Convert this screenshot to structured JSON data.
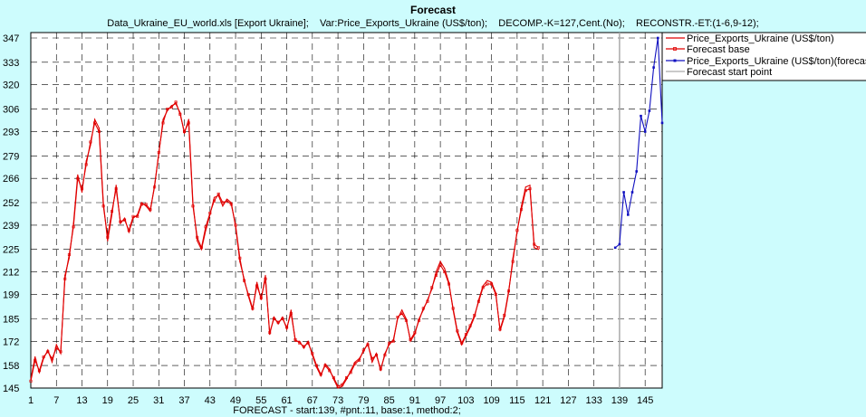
{
  "chart_data": {
    "type": "line",
    "title": "Forecast",
    "subtitle": "Data_Ukraine_EU_world.xls [Export Ukraine];    Var:Price_Exports_Ukraine (US$/ton);    DECOMP.-K=127,Cent.(No);    RECONSTR.-ET:(1-6,9-12);",
    "xlabel": "FORECAST - start:139, #pnt.:11, base:1, method:2;",
    "ylabel": "",
    "xlim": [
      1,
      149
    ],
    "ylim": [
      145,
      347
    ],
    "x_ticks": [
      "1",
      "7",
      "13",
      "19",
      "25",
      "31",
      "37",
      "43",
      "49",
      "55",
      "61",
      "67",
      "73",
      "79",
      "85",
      "91",
      "97",
      "103",
      "109",
      "115",
      "121",
      "127",
      "133",
      "139",
      "145"
    ],
    "y_ticks": [
      "145",
      "158",
      "172",
      "185",
      "199",
      "212",
      "225",
      "239",
      "252",
      "266",
      "279",
      "293",
      "306",
      "320",
      "333",
      "347"
    ],
    "grid": true,
    "legend_position": "right",
    "forecast_start": 139,
    "series": [
      {
        "name": "Price_Exports_Ukraine (US$/ton)",
        "color": "#e00000",
        "marker": "none",
        "x_start": 1,
        "values": [
          150,
          163,
          154,
          162,
          167,
          160,
          170,
          165,
          210,
          220,
          240,
          268,
          258,
          276,
          285,
          300,
          295,
          252,
          230,
          245,
          262,
          240,
          243,
          235,
          243,
          245,
          252,
          250,
          247,
          262,
          280,
          300,
          305,
          308,
          309,
          304,
          292,
          300,
          252,
          230,
          225,
          236,
          245,
          255,
          256,
          250,
          254,
          252,
          238,
          218,
          208,
          198,
          190,
          206,
          196,
          210,
          176,
          186,
          182,
          186,
          179,
          190,
          172,
          172,
          168,
          172,
          164,
          157,
          152,
          159,
          156,
          150,
          145,
          146,
          150,
          155,
          160,
          162,
          166,
          171,
          160,
          165,
          155,
          165,
          170,
          173,
          185,
          190,
          185,
          172,
          176,
          185,
          190,
          196,
          202,
          212,
          218,
          214,
          206,
          190,
          177,
          170,
          175,
          180,
          186,
          196,
          204,
          207,
          206,
          200,
          178,
          186,
          200,
          220,
          235,
          250,
          261,
          262,
          226,
          225
        ]
      },
      {
        "name": "Forecast base",
        "color": "#e00000",
        "marker": "square",
        "x_start": 1,
        "values": [
          149,
          161,
          155,
          163,
          166,
          162,
          168,
          166,
          208,
          222,
          238,
          266,
          260,
          274,
          287,
          298,
          293,
          250,
          232,
          247,
          260,
          241,
          242,
          236,
          244,
          244,
          251,
          251,
          248,
          261,
          281,
          298,
          306,
          307,
          310,
          303,
          293,
          298,
          250,
          232,
          226,
          238,
          246,
          253,
          257,
          252,
          253,
          251,
          239,
          220,
          207,
          199,
          191,
          204,
          197,
          208,
          177,
          185,
          183,
          185,
          180,
          188,
          173,
          171,
          169,
          171,
          165,
          158,
          153,
          158,
          155,
          151,
          146,
          147,
          151,
          154,
          159,
          161,
          167,
          170,
          162,
          164,
          156,
          164,
          171,
          172,
          186,
          188,
          184,
          173,
          177,
          184,
          191,
          195,
          203,
          210,
          216,
          212,
          205,
          191,
          178,
          171,
          176,
          181,
          187,
          195,
          203,
          205,
          205,
          199,
          179,
          187,
          201,
          218,
          236,
          248,
          259,
          260,
          228,
          226
        ]
      },
      {
        "name": "Price_Exports_Ukraine (US$/ton)(forecast)",
        "color": "#1010c0",
        "marker": "none",
        "x_start": 138,
        "values": [
          226,
          228,
          258,
          245,
          258,
          270,
          302,
          293,
          305,
          330,
          347,
          298
        ]
      },
      {
        "name": "Forecast start point",
        "color": "#aaaaaa",
        "marker": "none"
      }
    ]
  }
}
